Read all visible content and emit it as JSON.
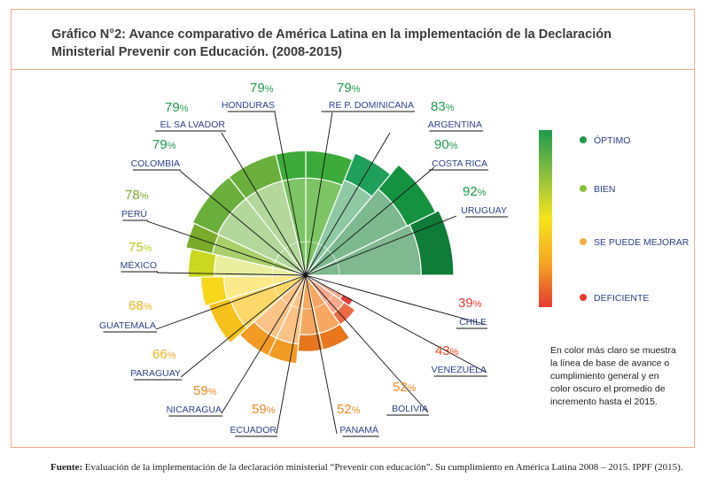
{
  "title": "Gráfico N°2: Avance comparativo de América Latina en la implementación de la Declaración Ministerial Prevenir con Educación. (2008-2015)",
  "footer": {
    "label": "Fuente:",
    "text": "Evaluación de la implementación de la declaración ministerial “Prevenir con educación”. Su cumplimiento en América Latina 2008 – 2015. IPPF (2015)."
  },
  "note": [
    "En color más claro se muestra",
    "la línea de base de avance o",
    "cumplimiento general y en",
    "color oscuro el promedio de",
    "incremento hasta el 2015."
  ],
  "legend": {
    "items": [
      {
        "label": "ÓPTIMO",
        "color": "#1e9a4c"
      },
      {
        "label": "BIEN",
        "color": "#8cbf3f"
      },
      {
        "label": "SE PUEDE MEJORAR",
        "color": "#f5b041"
      },
      {
        "label": "DEFICIENTE",
        "color": "#e53a2f"
      }
    ],
    "gradient": [
      "#1e9a4c",
      "#8cbf3f",
      "#f7e51a",
      "#f5a623",
      "#e53a2f"
    ]
  },
  "chart_data": {
    "type": "polar-bar",
    "unit": "%",
    "categories": [
      "URUGUAY",
      "COSTA RICA",
      "ARGENTINA",
      "RE P. DOMINICANA",
      "HONDURAS",
      "EL SA LVADOR",
      "COLOMBIA",
      "PERÚ",
      "MÉXICO",
      "GUATEMALA",
      "PARAGUAY",
      "NICARAGUA",
      "ECUADOR",
      "PANAMÁ",
      "BOLIVIA",
      "VENEZUELA",
      "CHILE"
    ],
    "values": [
      92,
      90,
      83,
      79,
      79,
      79,
      79,
      78,
      75,
      68,
      66,
      59,
      59,
      52,
      52,
      43,
      39
    ],
    "colors": {
      "light": [
        "#80b890",
        "#7cb98e",
        "#8fc9a4",
        "#7dc464",
        "#7dc464",
        "#b4d79b",
        "#b4d79b",
        "#a9cf6a",
        "#e8ee9e",
        "#fbe98a",
        "#fcd86a",
        "#fcc389",
        "#fcc389",
        "#f5a761",
        "#f5a761",
        "#f8a98c",
        "#f8a98c"
      ],
      "dark": [
        "#0f7c38",
        "#149240",
        "#1ea05a",
        "#3dab3a",
        "#3dab3a",
        "#6aae3c",
        "#6aae3c",
        "#7aab2a",
        "#cad820",
        "#f7d71a",
        "#f6c11b",
        "#f29b24",
        "#f29b24",
        "#e7761c",
        "#e7761c",
        "#ec6b45",
        "#e4403a"
      ],
      "label": [
        "#1e9a4c",
        "#1e9a4c",
        "#1e9a4c",
        "#1e9a4c",
        "#1e9a4c",
        "#1e9a4c",
        "#1e9a4c",
        "#7aab2a",
        "#bccc18",
        "#f0b01c",
        "#f0b01c",
        "#ef8a22",
        "#ef8a22",
        "#ef8a22",
        "#ef8a22",
        "#e94e26",
        "#e53a2f"
      ]
    }
  }
}
